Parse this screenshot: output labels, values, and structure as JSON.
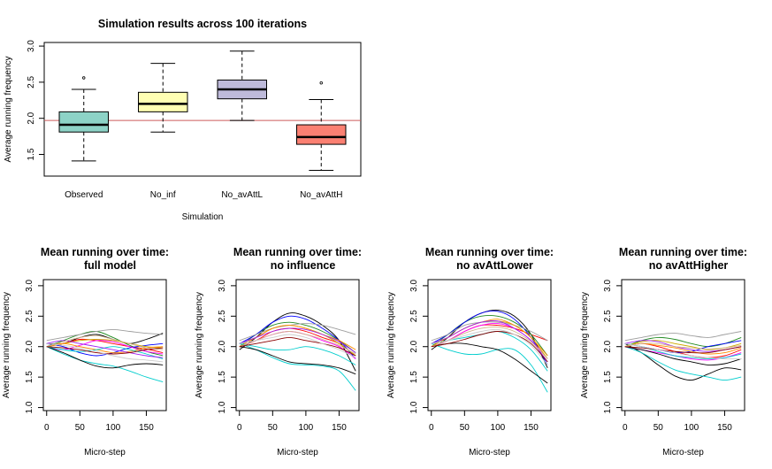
{
  "chart_data": [
    {
      "type": "boxplot",
      "title": "Simulation results across 100 iterations",
      "xlabel": "Simulation",
      "ylabel": "Average running frequency",
      "ylim": [
        1.2,
        3.05
      ],
      "yticks": [
        "1.5",
        "2.0",
        "2.5",
        "3.0"
      ],
      "categories": [
        "Observed",
        "No_inf",
        "No_avAttL",
        "No_avAttH"
      ],
      "colors": [
        "#8dd3c7",
        "#ffffb3",
        "#bebada",
        "#fb8072"
      ],
      "boxes": [
        {
          "whisker_low": 1.41,
          "q1": 1.81,
          "median": 1.91,
          "q3": 2.09,
          "whisker_high": 2.4,
          "outliers": [
            2.56
          ]
        },
        {
          "whisker_low": 1.81,
          "q1": 2.09,
          "median": 2.2,
          "q3": 2.36,
          "whisker_high": 2.76,
          "outliers": []
        },
        {
          "whisker_low": 1.97,
          "q1": 2.27,
          "median": 2.4,
          "q3": 2.53,
          "whisker_high": 2.93,
          "outliers": []
        },
        {
          "whisker_low": 1.28,
          "q1": 1.64,
          "median": 1.74,
          "q3": 1.91,
          "whisker_high": 2.26,
          "outliers": [
            2.49
          ]
        }
      ],
      "reference_line": {
        "y": 1.97,
        "color": "#cd5c5c"
      }
    },
    {
      "type": "line",
      "title_lines": [
        "Mean running over time:",
        "full model"
      ],
      "xlabel": "Micro-step",
      "ylabel": "Average running frequency",
      "xlim": [
        -5,
        180
      ],
      "ylim": [
        0.95,
        3.1
      ],
      "xticks": [
        "0",
        "50",
        "100",
        "150"
      ],
      "yticks": [
        "1.0",
        "1.5",
        "2.0",
        "2.5",
        "3.0"
      ],
      "x": [
        0,
        25,
        50,
        75,
        100,
        125,
        150,
        175
      ],
      "series": [
        {
          "color": "#000000",
          "values": [
            2.05,
            2.05,
            2.15,
            2.2,
            2.12,
            2.05,
            2.12,
            2.22
          ]
        },
        {
          "color": "#00cdcd",
          "values": [
            2.0,
            1.88,
            1.78,
            1.72,
            1.68,
            1.6,
            1.5,
            1.42
          ]
        },
        {
          "color": "#ff0000",
          "values": [
            2.0,
            2.05,
            2.12,
            2.1,
            2.05,
            2.0,
            1.96,
            1.9
          ]
        },
        {
          "color": "#228b22",
          "values": [
            2.0,
            2.1,
            2.2,
            2.25,
            2.15,
            2.02,
            1.92,
            1.85
          ]
        },
        {
          "color": "#0000ff",
          "values": [
            2.05,
            2.0,
            1.9,
            1.85,
            1.9,
            1.98,
            2.02,
            2.05
          ]
        },
        {
          "color": "#ff00ff",
          "values": [
            2.0,
            1.95,
            2.02,
            2.1,
            2.08,
            2.0,
            1.92,
            1.88
          ]
        },
        {
          "color": "#cdaa00",
          "values": [
            2.0,
            2.05,
            2.1,
            2.12,
            2.1,
            2.05,
            2.0,
            1.98
          ]
        },
        {
          "color": "#9e9e9e",
          "values": [
            2.1,
            2.15,
            2.2,
            2.25,
            2.28,
            2.25,
            2.22,
            2.2
          ]
        },
        {
          "color": "#000000",
          "values": [
            2.0,
            1.9,
            1.78,
            1.68,
            1.65,
            1.7,
            1.72,
            1.7
          ]
        },
        {
          "color": "#ff8c00",
          "values": [
            2.0,
            2.05,
            2.0,
            1.95,
            1.9,
            1.92,
            1.98,
            2.0
          ]
        },
        {
          "color": "#00cdcd",
          "values": [
            2.0,
            1.95,
            1.92,
            1.95,
            2.0,
            1.95,
            1.88,
            1.8
          ]
        },
        {
          "color": "#a020f0",
          "values": [
            2.05,
            2.1,
            2.05,
            2.0,
            1.95,
            1.9,
            1.85,
            1.82
          ]
        },
        {
          "color": "#d2b48c",
          "values": [
            2.0,
            2.08,
            2.15,
            2.18,
            2.12,
            2.05,
            1.98,
            1.95
          ]
        },
        {
          "color": "#8b0000",
          "values": [
            2.0,
            1.98,
            1.95,
            1.9,
            1.88,
            1.9,
            1.95,
            1.98
          ]
        },
        {
          "color": "#cccccc",
          "values": [
            2.05,
            2.02,
            1.98,
            1.92,
            1.85,
            1.8,
            1.78,
            1.75
          ]
        }
      ]
    },
    {
      "type": "line",
      "title_lines": [
        "Mean running over time:",
        "no influence"
      ],
      "xlabel": "Micro-step",
      "ylabel": "Average running frequency",
      "xlim": [
        -5,
        180
      ],
      "ylim": [
        0.95,
        3.1
      ],
      "xticks": [
        "0",
        "50",
        "100",
        "150"
      ],
      "yticks": [
        "1.0",
        "1.5",
        "2.0",
        "2.5",
        "3.0"
      ],
      "x": [
        0,
        25,
        50,
        75,
        100,
        125,
        150,
        175
      ],
      "series": [
        {
          "color": "#000000",
          "values": [
            1.95,
            2.15,
            2.4,
            2.55,
            2.5,
            2.35,
            2.1,
            1.6
          ]
        },
        {
          "color": "#00cdcd",
          "values": [
            2.05,
            1.95,
            1.82,
            1.72,
            1.7,
            1.68,
            1.6,
            1.28
          ]
        },
        {
          "color": "#ff0000",
          "values": [
            2.0,
            2.1,
            2.25,
            2.3,
            2.25,
            2.15,
            2.05,
            1.85
          ]
        },
        {
          "color": "#228b22",
          "values": [
            2.0,
            2.2,
            2.35,
            2.4,
            2.35,
            2.25,
            2.1,
            1.9
          ]
        },
        {
          "color": "#0000ff",
          "values": [
            2.05,
            2.2,
            2.4,
            2.5,
            2.45,
            2.3,
            2.1,
            1.8
          ]
        },
        {
          "color": "#ff00ff",
          "values": [
            2.0,
            2.1,
            2.2,
            2.25,
            2.2,
            2.1,
            2.0,
            1.8
          ]
        },
        {
          "color": "#cdaa00",
          "values": [
            2.05,
            2.15,
            2.3,
            2.35,
            2.3,
            2.2,
            2.05,
            1.85
          ]
        },
        {
          "color": "#9e9e9e",
          "values": [
            2.1,
            2.2,
            2.3,
            2.35,
            2.38,
            2.35,
            2.28,
            2.2
          ]
        },
        {
          "color": "#000000",
          "values": [
            2.0,
            1.95,
            1.85,
            1.75,
            1.72,
            1.7,
            1.65,
            1.55
          ]
        },
        {
          "color": "#ff8c00",
          "values": [
            2.0,
            2.15,
            2.3,
            2.35,
            2.3,
            2.2,
            2.1,
            1.95
          ]
        },
        {
          "color": "#00cdcd",
          "values": [
            2.05,
            2.0,
            1.95,
            1.95,
            2.0,
            1.95,
            1.85,
            1.7
          ]
        },
        {
          "color": "#a020f0",
          "values": [
            2.05,
            2.15,
            2.25,
            2.3,
            2.28,
            2.2,
            2.08,
            1.9
          ]
        },
        {
          "color": "#d2b48c",
          "values": [
            2.0,
            2.1,
            2.2,
            2.25,
            2.2,
            2.12,
            2.02,
            1.88
          ]
        },
        {
          "color": "#8b0000",
          "values": [
            2.0,
            2.05,
            2.1,
            2.15,
            2.1,
            2.05,
            1.98,
            1.85
          ]
        },
        {
          "color": "#cccccc",
          "values": [
            2.05,
            2.1,
            2.15,
            2.2,
            2.15,
            2.05,
            1.95,
            1.82
          ]
        }
      ]
    },
    {
      "type": "line",
      "title_lines": [
        "Mean running over time:",
        "no avAttLower"
      ],
      "xlabel": "Micro-step",
      "ylabel": "Average running frequency",
      "xlim": [
        -5,
        180
      ],
      "ylim": [
        0.95,
        3.1
      ],
      "xticks": [
        "0",
        "50",
        "100",
        "150"
      ],
      "yticks": [
        "1.0",
        "1.5",
        "2.0",
        "2.5",
        "3.0"
      ],
      "x": [
        0,
        25,
        50,
        75,
        100,
        125,
        150,
        175
      ],
      "series": [
        {
          "color": "#000000",
          "values": [
            1.95,
            2.15,
            2.4,
            2.55,
            2.6,
            2.5,
            2.2,
            1.65
          ]
        },
        {
          "color": "#00cdcd",
          "values": [
            2.05,
            1.95,
            1.88,
            1.88,
            1.95,
            1.95,
            1.7,
            1.25
          ]
        },
        {
          "color": "#ff0000",
          "values": [
            2.0,
            2.1,
            2.25,
            2.35,
            2.35,
            2.3,
            2.2,
            2.1
          ]
        },
        {
          "color": "#228b22",
          "values": [
            2.0,
            2.2,
            2.4,
            2.5,
            2.5,
            2.4,
            2.2,
            1.85
          ]
        },
        {
          "color": "#0000ff",
          "values": [
            2.05,
            2.2,
            2.4,
            2.55,
            2.58,
            2.45,
            2.15,
            1.7
          ]
        },
        {
          "color": "#ff00ff",
          "values": [
            2.0,
            2.1,
            2.25,
            2.35,
            2.38,
            2.3,
            2.1,
            1.8
          ]
        },
        {
          "color": "#cdaa00",
          "values": [
            2.05,
            2.15,
            2.3,
            2.4,
            2.42,
            2.35,
            2.15,
            1.8
          ]
        },
        {
          "color": "#9e9e9e",
          "values": [
            2.1,
            2.2,
            2.35,
            2.4,
            2.4,
            2.35,
            2.25,
            2.1
          ]
        },
        {
          "color": "#000000",
          "values": [
            2.0,
            2.05,
            2.05,
            2.0,
            1.95,
            1.8,
            1.6,
            1.4
          ]
        },
        {
          "color": "#ff8c00",
          "values": [
            2.0,
            2.15,
            2.3,
            2.4,
            2.45,
            2.35,
            2.15,
            1.85
          ]
        },
        {
          "color": "#00cdcd",
          "values": [
            2.05,
            2.1,
            2.15,
            2.2,
            2.25,
            2.15,
            1.95,
            1.6
          ]
        },
        {
          "color": "#a020f0",
          "values": [
            2.05,
            2.15,
            2.3,
            2.4,
            2.42,
            2.3,
            2.1,
            1.75
          ]
        },
        {
          "color": "#d2b48c",
          "values": [
            2.0,
            2.1,
            2.22,
            2.3,
            2.32,
            2.25,
            2.08,
            1.8
          ]
        },
        {
          "color": "#8b0000",
          "values": [
            2.0,
            2.05,
            2.12,
            2.2,
            2.25,
            2.2,
            2.05,
            1.75
          ]
        },
        {
          "color": "#cccccc",
          "values": [
            2.05,
            2.1,
            2.18,
            2.25,
            2.28,
            2.2,
            2.02,
            1.7
          ]
        }
      ]
    },
    {
      "type": "line",
      "title_lines": [
        "Mean running over time:",
        "no avAttHigher"
      ],
      "xlabel": "Micro-step",
      "ylabel": "Average running frequency",
      "xlim": [
        -5,
        180
      ],
      "ylim": [
        0.95,
        3.1
      ],
      "xticks": [
        "0",
        "50",
        "100",
        "150"
      ],
      "yticks": [
        "1.0",
        "1.5",
        "2.0",
        "2.5",
        "3.0"
      ],
      "x": [
        0,
        25,
        50,
        75,
        100,
        125,
        150,
        175
      ],
      "series": [
        {
          "color": "#000000",
          "values": [
            2.05,
            1.9,
            1.7,
            1.52,
            1.45,
            1.55,
            1.65,
            1.62
          ]
        },
        {
          "color": "#00cdcd",
          "values": [
            2.0,
            1.9,
            1.75,
            1.62,
            1.55,
            1.5,
            1.45,
            1.5
          ]
        },
        {
          "color": "#ff0000",
          "values": [
            2.0,
            2.05,
            2.0,
            1.92,
            1.85,
            1.82,
            1.85,
            1.95
          ]
        },
        {
          "color": "#228b22",
          "values": [
            2.0,
            2.1,
            2.15,
            2.12,
            2.05,
            2.0,
            2.05,
            2.15
          ]
        },
        {
          "color": "#0000ff",
          "values": [
            2.05,
            2.0,
            1.95,
            1.9,
            1.92,
            2.0,
            2.05,
            2.1
          ]
        },
        {
          "color": "#ff00ff",
          "values": [
            2.0,
            1.95,
            1.9,
            1.85,
            1.8,
            1.78,
            1.82,
            1.9
          ]
        },
        {
          "color": "#cdaa00",
          "values": [
            2.0,
            2.08,
            2.1,
            2.05,
            2.0,
            1.95,
            1.98,
            2.05
          ]
        },
        {
          "color": "#9e9e9e",
          "values": [
            2.1,
            2.15,
            2.2,
            2.22,
            2.18,
            2.15,
            2.2,
            2.25
          ]
        },
        {
          "color": "#000000",
          "values": [
            2.0,
            1.95,
            1.88,
            1.8,
            1.75,
            1.7,
            1.72,
            1.8
          ]
        },
        {
          "color": "#ff8c00",
          "values": [
            2.0,
            2.05,
            2.02,
            1.98,
            1.92,
            1.88,
            1.9,
            1.98
          ]
        },
        {
          "color": "#00cdcd",
          "values": [
            2.05,
            2.0,
            1.92,
            1.85,
            1.82,
            1.8,
            1.82,
            1.88
          ]
        },
        {
          "color": "#a020f0",
          "values": [
            2.05,
            2.1,
            2.08,
            2.0,
            1.95,
            1.92,
            1.95,
            2.0
          ]
        },
        {
          "color": "#d2b48c",
          "values": [
            2.0,
            2.05,
            2.05,
            2.0,
            1.98,
            1.96,
            1.98,
            2.02
          ]
        },
        {
          "color": "#8b0000",
          "values": [
            2.0,
            1.98,
            1.95,
            1.92,
            1.9,
            1.9,
            1.95,
            2.0
          ]
        },
        {
          "color": "#cccccc",
          "values": [
            2.05,
            2.0,
            1.95,
            1.9,
            1.85,
            1.82,
            1.8,
            1.8
          ]
        }
      ]
    }
  ]
}
